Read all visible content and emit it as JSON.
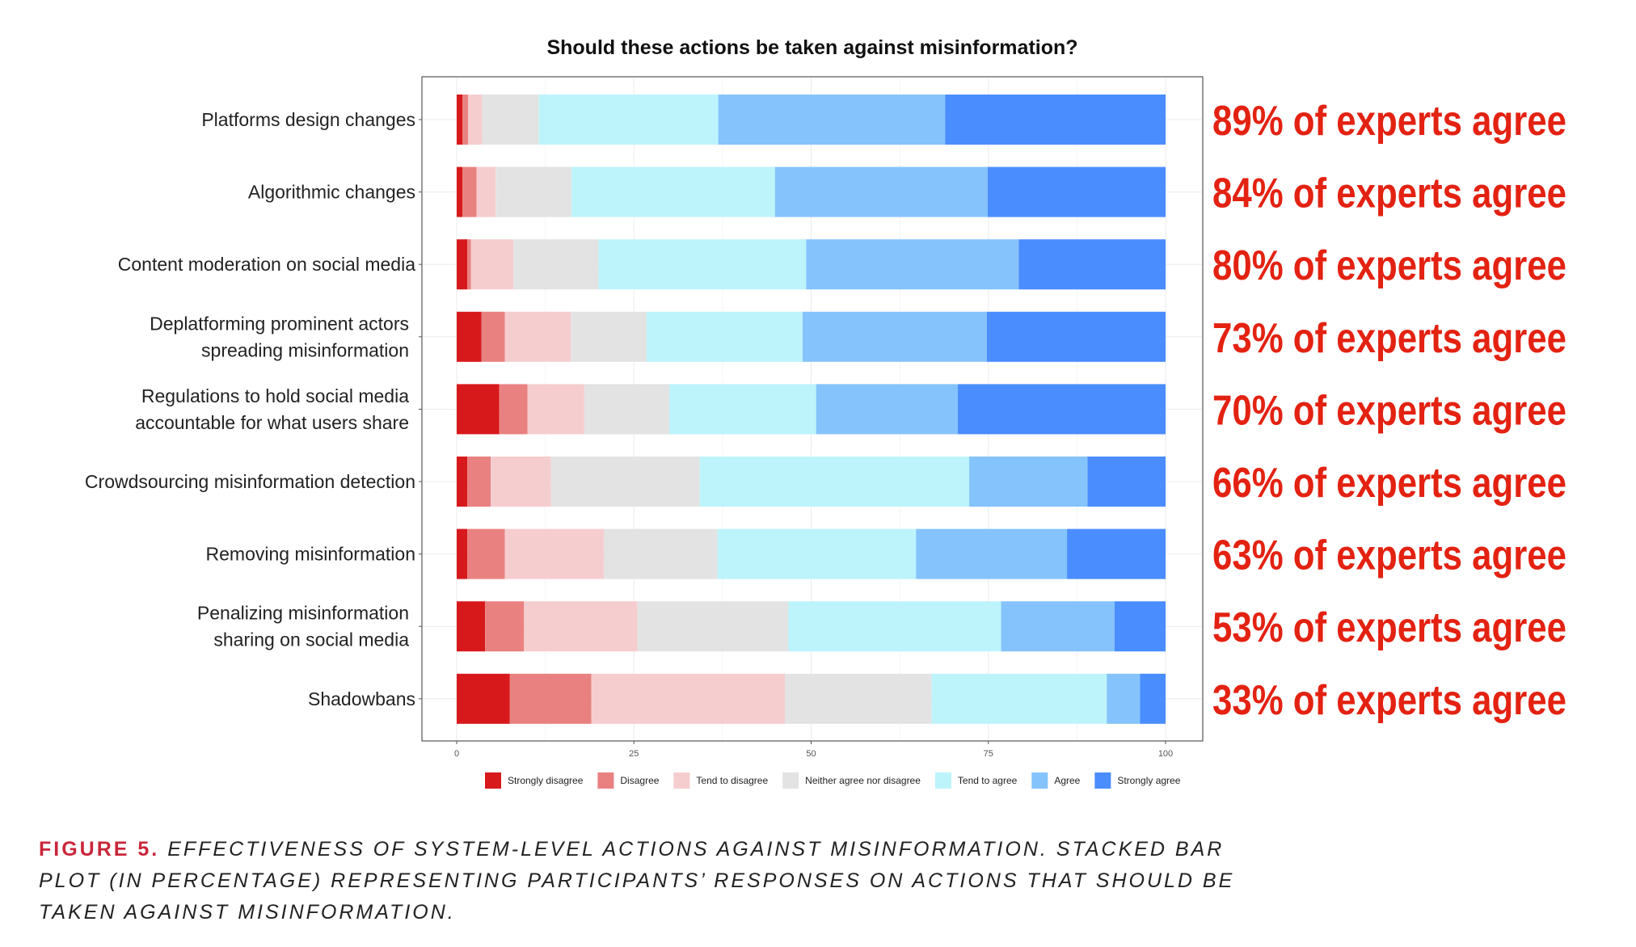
{
  "chart_data": {
    "type": "bar",
    "orientation": "horizontal",
    "stacked": true,
    "title": "Should these actions be taken against misinformation?",
    "xlabel": "",
    "ylabel": "",
    "xlim": [
      0,
      100
    ],
    "xticks": [
      "0",
      "25",
      "50",
      "75",
      "100"
    ],
    "grid": true,
    "legend_position": "bottom",
    "categories": [
      "Platforms design changes",
      "Algorithmic changes",
      "Content moderation on social media",
      "Deplatforming prominent actors\nspreading misinformation",
      "Regulations to hold social media\naccountable for what users share",
      "Crowdsourcing misinformation detection",
      "Removing misinformation",
      "Penalizing misinformation\nsharing on social media",
      "Shadowbans"
    ],
    "series": [
      {
        "name": "Strongly disagree",
        "color": "#d7191c",
        "values": [
          0.8,
          0.8,
          1.5,
          3.5,
          6.0,
          1.5,
          1.5,
          4.0,
          7.5
        ]
      },
      {
        "name": "Disagree",
        "color": "#e98181",
        "values": [
          0.8,
          2.0,
          0.5,
          3.3,
          4.0,
          3.3,
          5.3,
          5.5,
          11.5
        ]
      },
      {
        "name": "Tend to disagree",
        "color": "#f6cdcf",
        "values": [
          2.0,
          2.7,
          6.0,
          9.3,
          8.0,
          8.5,
          14.0,
          16.0,
          27.3
        ]
      },
      {
        "name": "Neither agree nor disagree",
        "color": "#e3e3e3",
        "values": [
          8.0,
          10.7,
          12.0,
          10.7,
          12.0,
          21.0,
          16.0,
          21.3,
          20.7
        ]
      },
      {
        "name": "Tend to agree",
        "color": "#bdf4fc",
        "values": [
          25.3,
          28.7,
          29.3,
          22.0,
          20.7,
          38.0,
          28.0,
          30.0,
          24.7
        ]
      },
      {
        "name": "Agree",
        "color": "#85c3fc",
        "values": [
          32.0,
          30.0,
          30.0,
          26.0,
          20.0,
          16.7,
          21.3,
          16.0,
          4.7
        ]
      },
      {
        "name": "Strongly agree",
        "color": "#4a8dff",
        "values": [
          31.1,
          25.1,
          20.7,
          25.2,
          29.3,
          11.0,
          13.9,
          7.2,
          3.6
        ]
      }
    ],
    "annotations": [
      "89% of experts agree",
      "84% of experts agree",
      "80% of experts agree",
      "73% of experts agree",
      "70% of experts agree",
      "66% of experts agree",
      "63% of experts agree",
      "53% of experts agree",
      "33% of experts agree"
    ]
  },
  "caption": {
    "figure_label": "FIGURE 5.",
    "text": "EFFECTIVENESS OF SYSTEM-LEVEL ACTIONS AGAINST MISINFORMATION. STACKED BAR PLOT (IN PERCENTAGE) REPRESENTING PARTICIPANTS’ RESPONSES ON ACTIONS THAT SHOULD BE TAKEN AGAINST MISINFORMATION."
  }
}
